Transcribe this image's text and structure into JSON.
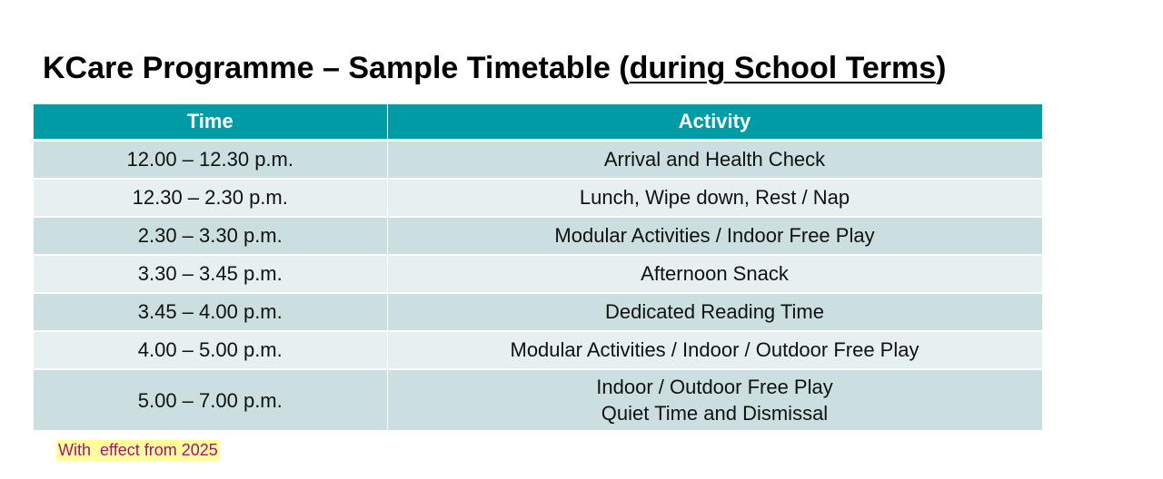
{
  "title": {
    "prefix": "KCare Programme – Sample Timetable (",
    "underlined": "during School Terms",
    "suffix": ")"
  },
  "table": {
    "headers": [
      "Time",
      "Activity"
    ],
    "rows": [
      {
        "time": "12.00 – 12.30 p.m.",
        "activity": [
          "Arrival and Health Check"
        ]
      },
      {
        "time": "12.30 – 2.30 p.m.",
        "activity": [
          "Lunch, Wipe down, Rest / Nap"
        ]
      },
      {
        "time": "2.30 – 3.30 p.m.",
        "activity": [
          "Modular Activities / Indoor Free Play"
        ]
      },
      {
        "time": "3.30 – 3.45 p.m.",
        "activity": [
          "Afternoon Snack"
        ]
      },
      {
        "time": "3.45 – 4.00 p.m.",
        "activity": [
          "Dedicated Reading Time"
        ]
      },
      {
        "time": "4.00 – 5.00 p.m.",
        "activity": [
          "Modular Activities / Indoor / Outdoor Free Play"
        ]
      },
      {
        "time": "5.00 – 7.00 p.m.",
        "activity": [
          "Indoor / Outdoor Free Play",
          "Quiet Time and Dismissal"
        ]
      }
    ]
  },
  "note": "With  effect from 2025",
  "colors": {
    "header_bg": "#009ca6",
    "row_odd": "#cbdfe0",
    "row_even": "#e6f0f0",
    "note_bg": "#ffff9c",
    "note_text": "#a0157a"
  }
}
